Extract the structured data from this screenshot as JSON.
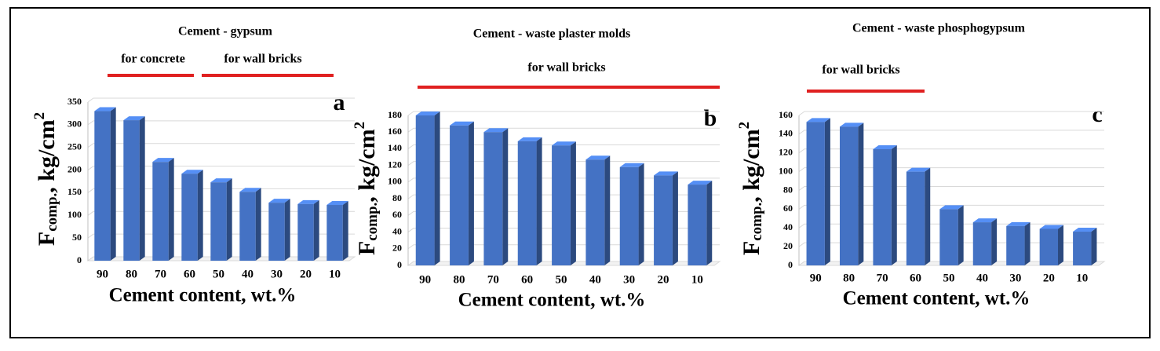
{
  "chart_data": [
    {
      "type": "bar",
      "title": "Cement - gypsum",
      "annotations": [
        "for concrete",
        "for wall bricks"
      ],
      "panel_label": "a",
      "y_label": [
        "F",
        "comp.",
        ", kg/cm",
        "2"
      ],
      "x_label": "Cement content, wt.%",
      "categories": [
        "90",
        "80",
        "70",
        "60",
        "50",
        "40",
        "30",
        "20",
        "10"
      ],
      "values": [
        330,
        310,
        218,
        192,
        173,
        152,
        128,
        125,
        123
      ],
      "color": "#4472c4",
      "ylim": [
        0,
        350
      ],
      "yticks": [
        0,
        50,
        100,
        150,
        200,
        250,
        300,
        350
      ],
      "grid": true
    },
    {
      "type": "bar",
      "title": "Cement - waste plaster molds",
      "annotations": [
        "for wall bricks"
      ],
      "panel_label": "b",
      "y_label": [
        "F",
        "comp.",
        ", kg/cm",
        "2"
      ],
      "x_label": "Cement content, wt.%",
      "categories": [
        "90",
        "80",
        "70",
        "60",
        "50",
        "40",
        "30",
        "20",
        "10"
      ],
      "values": [
        180,
        168,
        160,
        149,
        144,
        127,
        118,
        108,
        97
      ],
      "color": "#4472c4",
      "ylim": [
        0,
        180
      ],
      "yticks": [
        0,
        20,
        40,
        60,
        80,
        100,
        120,
        140,
        160,
        180
      ],
      "grid": true
    },
    {
      "type": "bar",
      "title": "Cement - waste phosphogypsum",
      "annotations": [
        "for wall bricks"
      ],
      "panel_label": "c",
      "y_label": [
        "F",
        "comp.",
        ", kg/cm",
        "2"
      ],
      "x_label": "Cement content, wt.%",
      "categories": [
        "90",
        "80",
        "70",
        "60",
        "50",
        "40",
        "30",
        "20",
        "10"
      ],
      "values": [
        153,
        148,
        124,
        100,
        60,
        46,
        42,
        39,
        36
      ],
      "color": "#4472c4",
      "ylim": [
        0,
        160
      ],
      "yticks": [
        0,
        20,
        40,
        60,
        80,
        100,
        120,
        140,
        160
      ],
      "grid": true
    }
  ]
}
